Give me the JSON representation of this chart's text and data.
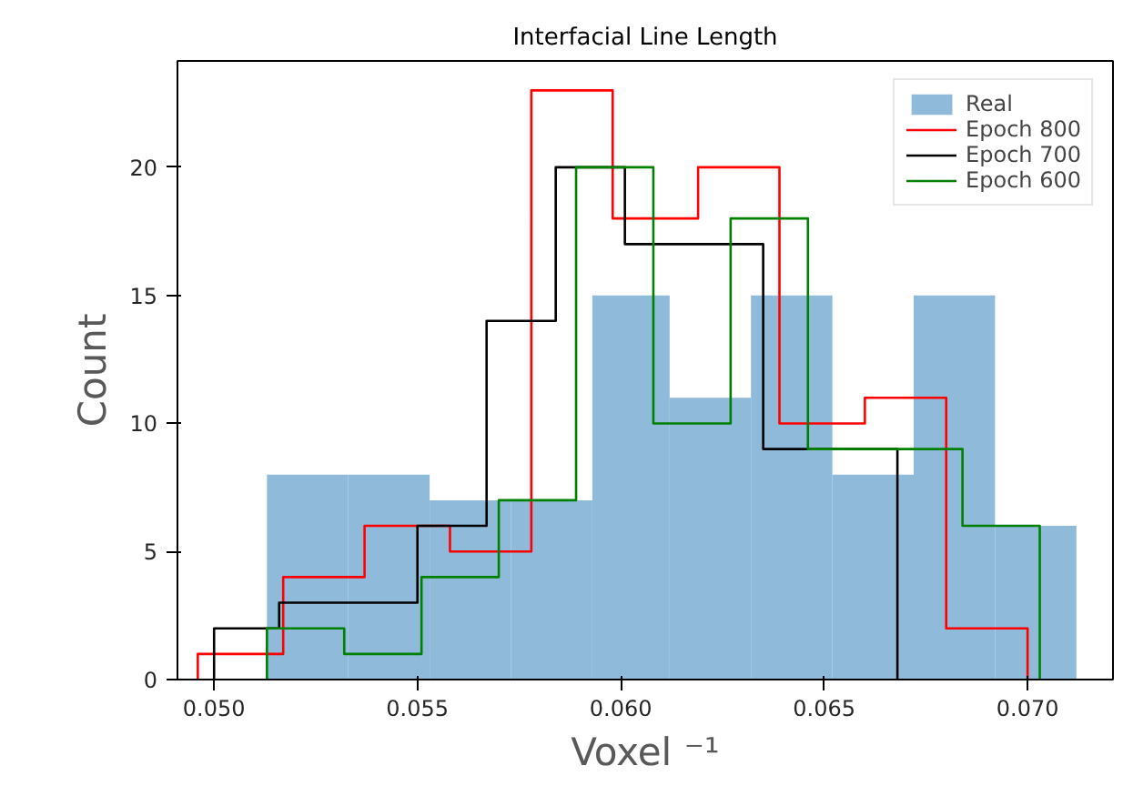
{
  "chart_data": {
    "type": "histogram",
    "title": "Interfacial Line Length",
    "xlabel": "Voxel ⁻¹",
    "ylabel": "Count",
    "bins": [
      0.0513,
      0.0533,
      0.0553,
      0.0573,
      0.0593,
      0.0612,
      0.0632,
      0.0652,
      0.0672,
      0.0692,
      0.0712
    ],
    "series": [
      {
        "name": "Real",
        "color": "#8fbad9",
        "values": [
          8,
          8,
          7,
          7,
          15,
          11,
          15,
          8,
          15,
          6
        ]
      },
      {
        "name": "Epoch 800",
        "type": "step",
        "color": "#ff0000",
        "x": [
          0.0496,
          0.0496,
          0.0517,
          0.0537,
          0.0558,
          0.0578,
          0.0598,
          0.0619,
          0.0639,
          0.066,
          0.068,
          0.07
        ],
        "values": [
          0,
          1,
          4,
          6,
          5,
          23,
          18,
          20,
          10,
          11,
          2,
          0
        ]
      },
      {
        "name": "Epoch 700",
        "type": "step",
        "color": "#000000",
        "x": [
          0.05,
          0.05,
          0.0516,
          0.0533,
          0.055,
          0.0567,
          0.0584,
          0.0601,
          0.0618,
          0.0635,
          0.0651,
          0.0668
        ],
        "values": [
          0,
          2,
          3,
          3,
          6,
          14,
          20,
          17,
          17,
          9,
          9,
          0
        ]
      },
      {
        "name": "Epoch 600",
        "type": "step",
        "color": "#008000",
        "x": [
          0.0513,
          0.0513,
          0.0532,
          0.0551,
          0.057,
          0.0589,
          0.0608,
          0.0627,
          0.0646,
          0.0665,
          0.0684,
          0.0703
        ],
        "values": [
          0,
          2,
          1,
          4,
          7,
          20,
          10,
          18,
          9,
          9,
          6,
          0
        ]
      }
    ],
    "xlim": [
      0.0491,
      0.0721
    ],
    "ylim": [
      0,
      24.15
    ],
    "xticks": [
      {
        "value": 0.05,
        "label": "0.050"
      },
      {
        "value": 0.055,
        "label": "0.055"
      },
      {
        "value": 0.06,
        "label": "0.060"
      },
      {
        "value": 0.065,
        "label": "0.065"
      },
      {
        "value": 0.07,
        "label": "0.070"
      }
    ],
    "yticks": [
      0,
      5,
      10,
      15,
      20
    ],
    "legend": "top right"
  }
}
